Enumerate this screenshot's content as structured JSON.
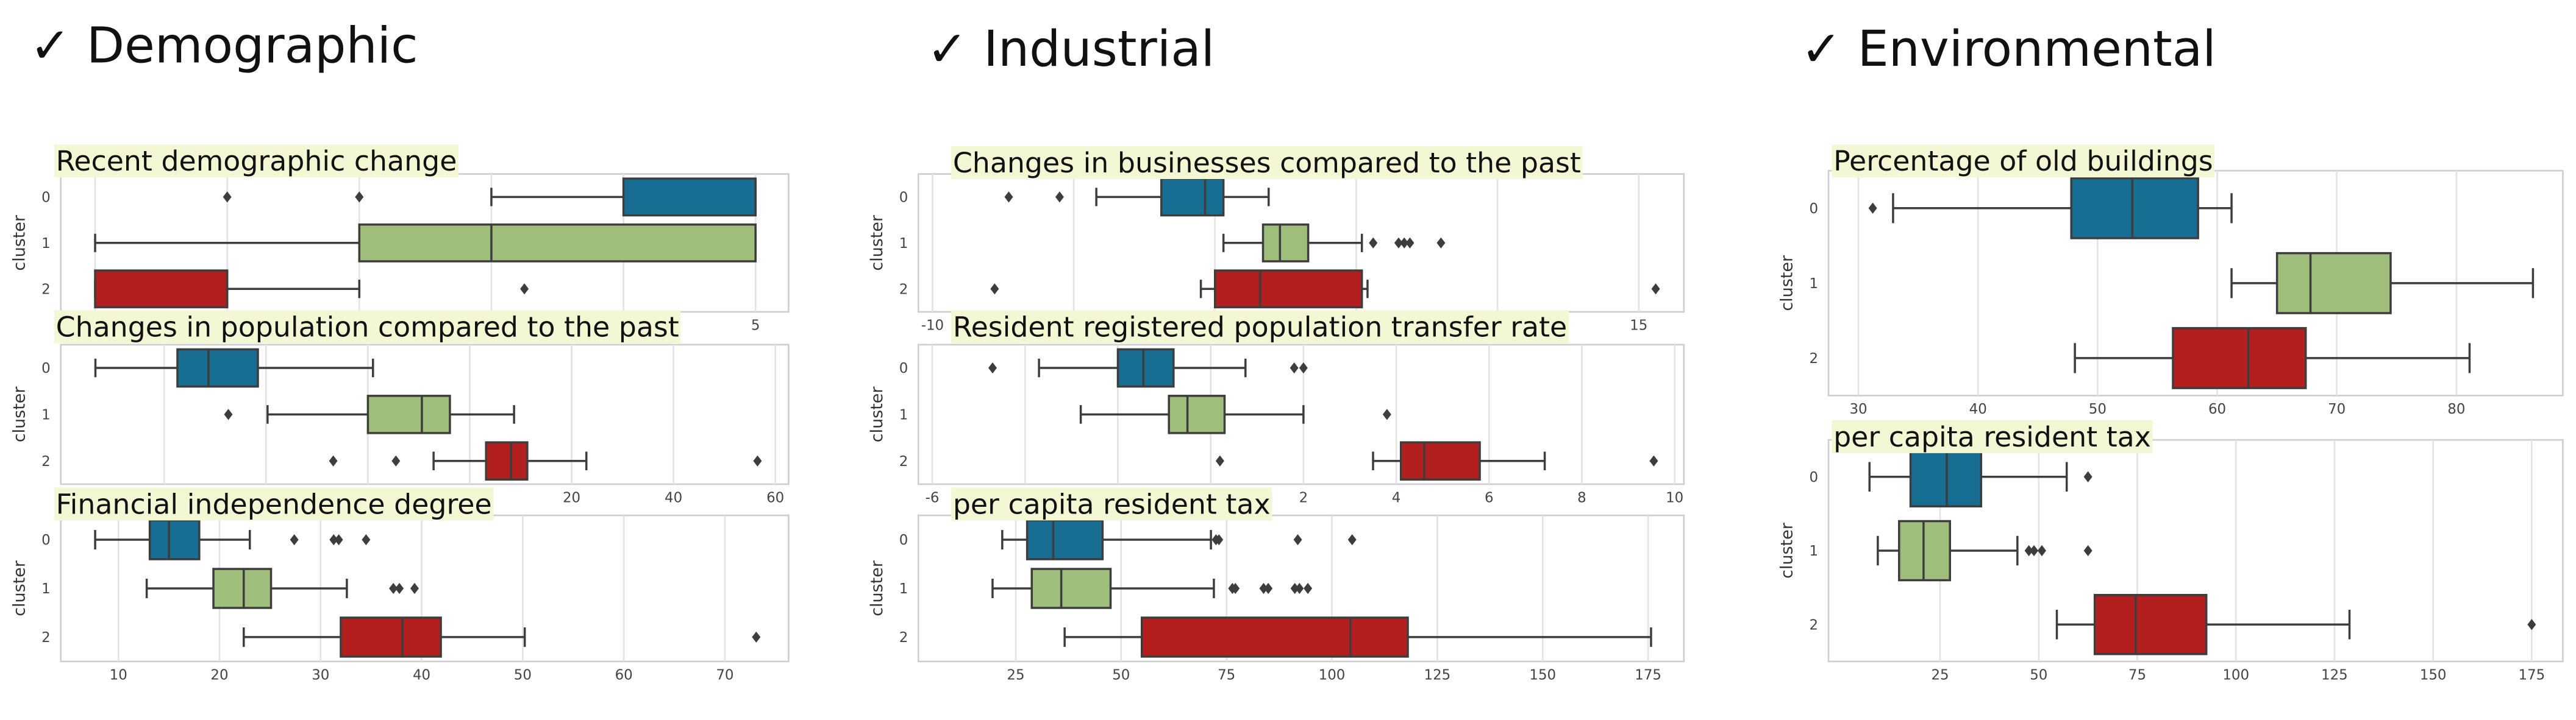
{
  "headers": [
    "✓ Demographic",
    "✓ Industrial",
    "✓ Environmental"
  ],
  "chart_data": [
    {
      "type": "box",
      "title": "Recent demographic change",
      "ylabel": "cluster",
      "categories": [
        "0",
        "1",
        "2"
      ],
      "colors": [
        "#176d92",
        "#9fbe7b",
        "#b31f1f"
      ],
      "xlim": [
        -0.26,
        5.25
      ],
      "xticks": [
        0,
        1,
        2,
        3,
        4,
        5
      ],
      "grid": true,
      "boxes": [
        {
          "whislo": 3,
          "q1": 4,
          "med": 5,
          "q3": 5,
          "whishi": 5,
          "fliers": [
            1,
            2
          ]
        },
        {
          "whislo": 0,
          "q1": 2,
          "med": 3,
          "q3": 5,
          "whishi": 5,
          "fliers": []
        },
        {
          "whislo": 0,
          "q1": 0,
          "med": 1,
          "q3": 1,
          "whishi": 2,
          "fliers": [
            3.25
          ]
        }
      ]
    },
    {
      "type": "box",
      "title": "Changes in population compared to the past",
      "ylabel": "cluster",
      "categories": [
        "0",
        "1",
        "2"
      ],
      "colors": [
        "#176d92",
        "#9fbe7b",
        "#b31f1f"
      ],
      "xlim": [
        -80.3,
        62.6
      ],
      "xticks": [
        -60,
        -40,
        -20,
        0,
        20,
        40,
        60
      ],
      "grid": true,
      "boxes": [
        {
          "whislo": -73.5,
          "q1": -57.4,
          "med": -51.3,
          "q3": -41.6,
          "whishi": -19,
          "fliers": []
        },
        {
          "whislo": -39.7,
          "q1": -20,
          "med": -9.4,
          "q3": -3.9,
          "whishi": 8.7,
          "fliers": [
            -47.4
          ]
        },
        {
          "whislo": -7.1,
          "q1": 3.2,
          "med": 8.1,
          "q3": 11.3,
          "whishi": 22.9,
          "fliers": [
            -26.8,
            -14.5,
            56.5
          ]
        }
      ]
    },
    {
      "type": "box",
      "title": "Financial independence degree",
      "ylabel": "cluster",
      "categories": [
        "0",
        "1",
        "2"
      ],
      "colors": [
        "#176d92",
        "#9fbe7b",
        "#b31f1f"
      ],
      "xlim": [
        4.3,
        76.3
      ],
      "xticks": [
        10,
        20,
        30,
        40,
        50,
        60,
        70
      ],
      "grid": true,
      "boxes": [
        {
          "whislo": 7.7,
          "q1": 13.1,
          "med": 15,
          "q3": 18,
          "whishi": 23,
          "fliers": [
            27.4,
            31.3,
            31.8,
            34.5
          ]
        },
        {
          "whislo": 12.8,
          "q1": 19.4,
          "med": 22.4,
          "q3": 25.1,
          "whishi": 32.6,
          "fliers": [
            37.2,
            37.8,
            39.3
          ]
        },
        {
          "whislo": 22.4,
          "q1": 32,
          "med": 38.1,
          "q3": 41.9,
          "whishi": 50.2,
          "fliers": [
            73.1
          ]
        }
      ]
    },
    {
      "type": "box",
      "title": "Changes in businesses compared to the past",
      "ylabel": "cluster",
      "categories": [
        "0",
        "1",
        "2"
      ],
      "colors": [
        "#176d92",
        "#9fbe7b",
        "#b31f1f"
      ],
      "xlim": [
        -10.5,
        16.6
      ],
      "xticks": [
        -10,
        -5,
        0,
        5,
        10,
        15
      ],
      "grid": true,
      "boxes": [
        {
          "whislo": -4.2,
          "q1": -1.9,
          "med": -0.35,
          "q3": 0.3,
          "whishi": 1.9,
          "fliers": [
            -7.3,
            -5.5
          ]
        },
        {
          "whislo": 0.3,
          "q1": 1.7,
          "med": 2.3,
          "q3": 3.3,
          "whishi": 5.2,
          "fliers": [
            5.6,
            6.5,
            6.7,
            6.9,
            8
          ]
        },
        {
          "whislo": -0.5,
          "q1": 0,
          "med": 1.6,
          "q3": 5.2,
          "whishi": 5.4,
          "fliers": [
            -7.8,
            15.6
          ]
        }
      ]
    },
    {
      "type": "box",
      "title": "Resident registered population transfer rate",
      "ylabel": "cluster",
      "categories": [
        "0",
        "1",
        "2"
      ],
      "colors": [
        "#176d92",
        "#9fbe7b",
        "#b31f1f"
      ],
      "xlim": [
        -6.3,
        10.2
      ],
      "xticks": [
        -6,
        -4,
        -2,
        0,
        2,
        4,
        6,
        8,
        10
      ],
      "grid": true,
      "boxes": [
        {
          "whislo": -3.7,
          "q1": -2,
          "med": -1.45,
          "q3": -0.8,
          "whishi": 0.75,
          "fliers": [
            -4.7,
            1.8,
            2
          ]
        },
        {
          "whislo": -2.8,
          "q1": -0.9,
          "med": -0.5,
          "q3": 0.3,
          "whishi": 2,
          "fliers": [
            3.8
          ]
        },
        {
          "whislo": 3.5,
          "q1": 4.1,
          "med": 4.6,
          "q3": 5.8,
          "whishi": 7.2,
          "fliers": [
            0.2,
            9.55
          ]
        }
      ]
    },
    {
      "type": "box",
      "title": "per capita resident tax",
      "ylabel": "cluster",
      "categories": [
        "0",
        "1",
        "2"
      ],
      "colors": [
        "#176d92",
        "#9fbe7b",
        "#b31f1f"
      ],
      "xlim": [
        1.9,
        183.5
      ],
      "xticks": [
        25,
        50,
        75,
        100,
        125,
        150,
        175
      ],
      "grid": true,
      "boxes": [
        {
          "whislo": 21.8,
          "q1": 27.7,
          "med": 33.9,
          "q3": 45.6,
          "whishi": 71.3,
          "fliers": [
            72.5,
            73.2,
            91.9,
            104.8
          ]
        },
        {
          "whislo": 19.5,
          "q1": 28.8,
          "med": 35.8,
          "q3": 47.5,
          "whishi": 72,
          "fliers": [
            76.4,
            77.1,
            83.8,
            84.9,
            91.2,
            92.3,
            94.3
          ]
        },
        {
          "whislo": 36.6,
          "q1": 54.9,
          "med": 104.4,
          "q3": 118,
          "whishi": 175.7,
          "fliers": []
        }
      ]
    },
    {
      "type": "box",
      "title": "Percentage of old buildings",
      "ylabel": "cluster",
      "categories": [
        "0",
        "1",
        "2"
      ],
      "colors": [
        "#176d92",
        "#9fbe7b",
        "#b31f1f"
      ],
      "xlim": [
        27.5,
        88.9
      ],
      "xticks": [
        30,
        40,
        50,
        60,
        70,
        80
      ],
      "grid": true,
      "boxes": [
        {
          "whislo": 32.9,
          "q1": 47.8,
          "med": 52.9,
          "q3": 58.4,
          "whishi": 61.2,
          "fliers": [
            31.2
          ]
        },
        {
          "whislo": 61.2,
          "q1": 65,
          "med": 67.8,
          "q3": 74.5,
          "whishi": 86.4,
          "fliers": []
        },
        {
          "whislo": 48.1,
          "q1": 56.3,
          "med": 62.6,
          "q3": 67.4,
          "whishi": 81.1,
          "fliers": []
        }
      ]
    },
    {
      "type": "box",
      "title": "per capita resident tax",
      "ylabel": "cluster",
      "categories": [
        "0",
        "1",
        "2"
      ],
      "colors": [
        "#176d92",
        "#9fbe7b",
        "#b31f1f"
      ],
      "xlim": [
        -3.3,
        182.9
      ],
      "xticks": [
        25,
        50,
        75,
        100,
        125,
        150,
        175
      ],
      "grid": true,
      "boxes": [
        {
          "whislo": 7.1,
          "q1": 17.5,
          "med": 26.7,
          "q3": 35.4,
          "whishi": 57.1,
          "fliers": [
            62.5
          ]
        },
        {
          "whislo": 9.2,
          "q1": 14.6,
          "med": 20.8,
          "q3": 27.5,
          "whishi": 44.6,
          "fliers": [
            47.5,
            48.8,
            50.8,
            62.5
          ]
        },
        {
          "whislo": 54.6,
          "q1": 64.2,
          "med": 74.6,
          "q3": 92.5,
          "whishi": 128.8,
          "fliers": [
            175
          ]
        }
      ]
    }
  ]
}
